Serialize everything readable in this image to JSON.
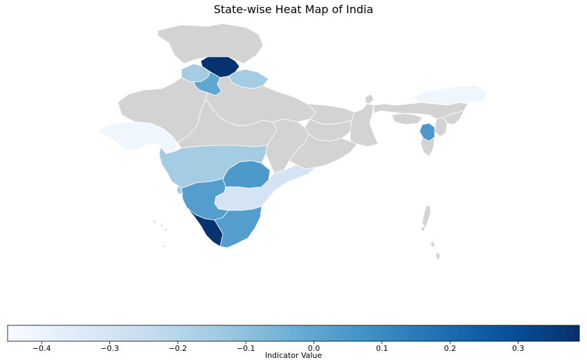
{
  "chart_data": {
    "type": "heatmap",
    "title": "State-wise Heat Map of India",
    "colorbar": {
      "label": "Indicator Value",
      "range": [
        -0.45,
        0.39
      ],
      "ticks": [
        -0.4,
        -0.3,
        -0.2,
        -0.1,
        0.0,
        0.1,
        0.2,
        0.3
      ],
      "tick_labels": [
        "−0.4",
        "−0.3",
        "−0.2",
        "−0.1",
        "0.0",
        "0.1",
        "0.2",
        "0.3"
      ],
      "colormap": "Blues",
      "orientation": "horizontal",
      "placement": "bottom"
    },
    "no_data_color": "#d3d3d3",
    "states": [
      {
        "id": "jammu-kashmir",
        "value": null
      },
      {
        "id": "himachal-pradesh",
        "value": 0.38
      },
      {
        "id": "punjab",
        "value": -0.15
      },
      {
        "id": "haryana",
        "value": 0.0
      },
      {
        "id": "uttarakhand",
        "value": -0.15
      },
      {
        "id": "rajasthan",
        "value": null
      },
      {
        "id": "uttar-pradesh",
        "value": null
      },
      {
        "id": "madhya-pradesh",
        "value": null
      },
      {
        "id": "bihar",
        "value": null
      },
      {
        "id": "jharkhand",
        "value": null
      },
      {
        "id": "west-bengal",
        "value": null
      },
      {
        "id": "chhattisgarh",
        "value": null
      },
      {
        "id": "odisha",
        "value": null
      },
      {
        "id": "gujarat",
        "value": -0.42
      },
      {
        "id": "maharashtra",
        "value": -0.15
      },
      {
        "id": "telangana",
        "value": 0.05
      },
      {
        "id": "andhra-pradesh",
        "value": -0.3
      },
      {
        "id": "karnataka",
        "value": 0.03
      },
      {
        "id": "goa",
        "value": -0.15
      },
      {
        "id": "tamil-nadu",
        "value": 0.03
      },
      {
        "id": "kerala",
        "value": 0.38
      },
      {
        "id": "sikkim",
        "value": null
      },
      {
        "id": "arunachal-pradesh",
        "value": -0.42
      },
      {
        "id": "assam",
        "value": null
      },
      {
        "id": "nagaland",
        "value": null
      },
      {
        "id": "meghalaya",
        "value": null
      },
      {
        "id": "manipur",
        "value": null
      },
      {
        "id": "mizoram",
        "value": null
      },
      {
        "id": "tripura",
        "value": 0.05
      },
      {
        "id": "andaman-nicobar",
        "value": null
      },
      {
        "id": "lakshadweep",
        "value": null
      }
    ]
  }
}
